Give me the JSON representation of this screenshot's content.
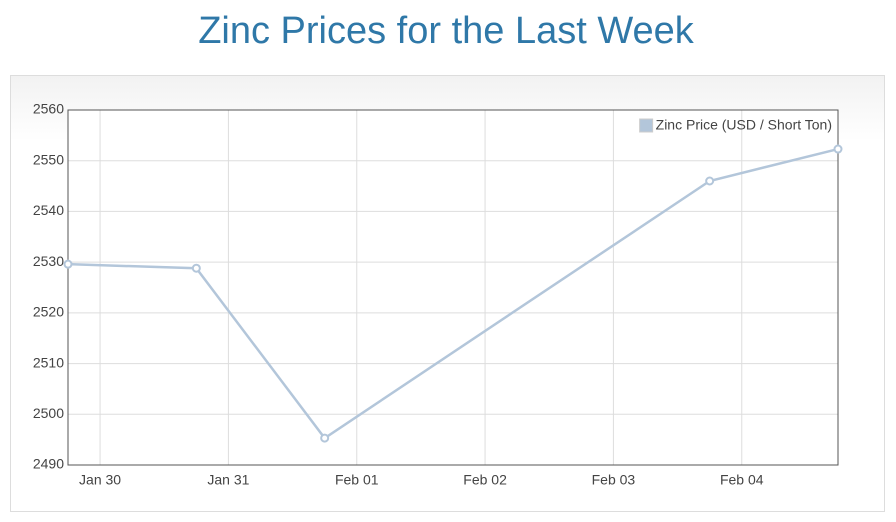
{
  "chart_data": {
    "type": "line",
    "title": "Zinc Prices for the Last Week",
    "x": [
      -0.25,
      0.75,
      1.75,
      4.75,
      5.75
    ],
    "series": [
      {
        "name": "Zinc Price (USD / Short Ton)",
        "color": "#b3c6da",
        "values": [
          2529.6,
          2528.8,
          2495.3,
          2546,
          2552.3
        ]
      }
    ],
    "xlim": [
      -0.25,
      5.75
    ],
    "xticks": [
      {
        "value": 0,
        "label": "Jan 30"
      },
      {
        "value": 1,
        "label": "Jan 31"
      },
      {
        "value": 2,
        "label": "Feb 01"
      },
      {
        "value": 3,
        "label": "Feb 02"
      },
      {
        "value": 4,
        "label": "Feb 03"
      },
      {
        "value": 5,
        "label": "Feb 04"
      }
    ],
    "ylim": [
      2490,
      2560
    ],
    "yticks": [
      2490,
      2500,
      2510,
      2520,
      2530,
      2540,
      2550,
      2560
    ],
    "grid": true,
    "legend": "top-right"
  }
}
